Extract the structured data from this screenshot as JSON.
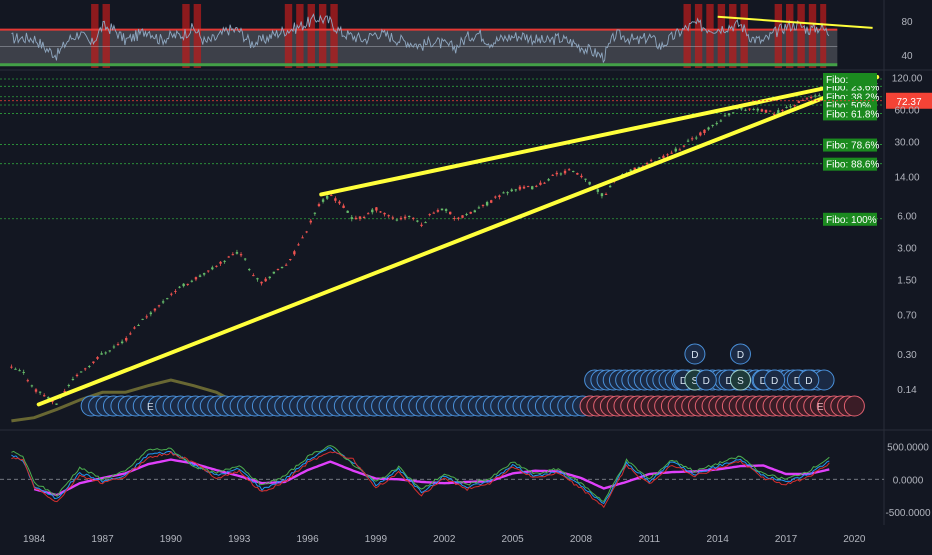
{
  "chart_data": [
    {
      "type": "line",
      "pane": "rsi",
      "y_ticks": [
        "80",
        "40"
      ],
      "ylim": [
        25,
        100
      ],
      "upper_band": 70,
      "lower_band": 30,
      "band_color": "#b71c1c",
      "line_color": "#8fa7c0",
      "trendline": {
        "x": [
          2014.0,
          2020.8
        ],
        "y": [
          85,
          72
        ],
        "color": "#ffff3b"
      },
      "series": [
        {
          "x": [
            1984.0,
            1984.5,
            1985.0,
            1985.5,
            1986.0,
            1986.5,
            1987.0,
            1987.5,
            1988.0,
            1988.5,
            1989.0,
            1989.5,
            1990.0,
            1990.5,
            1991.0,
            1991.5,
            1992.0,
            1992.5,
            1993.0,
            1993.5,
            1994.0,
            1994.5,
            1995.0,
            1995.5,
            1996.0,
            1996.5,
            1997.0,
            1997.5,
            1998.0,
            1998.5,
            1999.0,
            1999.5,
            2000.0,
            2000.5,
            2001.0,
            2001.5,
            2002.0,
            2002.5,
            2003.0,
            2003.5,
            2004.0,
            2004.5,
            2005.0,
            2005.5,
            2006.0,
            2006.5,
            2007.0,
            2007.5,
            2008.0,
            2008.5,
            2009.0,
            2009.5,
            2010.0,
            2010.5,
            2011.0,
            2011.5,
            2012.0,
            2012.5,
            2013.0,
            2013.5,
            2014.0,
            2014.5,
            2015.0,
            2015.5,
            2016.0,
            2016.5,
            2017.0,
            2017.5,
            2018.0,
            2018.5,
            2018.9
          ],
          "y": [
            60,
            48,
            40,
            58,
            66,
            52,
            74,
            70,
            57,
            63,
            70,
            58,
            62,
            64,
            72,
            55,
            60,
            70,
            69,
            54,
            57,
            64,
            69,
            72,
            78,
            84,
            79,
            66,
            62,
            58,
            66,
            63,
            58,
            55,
            51,
            57,
            52,
            49,
            61,
            66,
            55,
            59,
            62,
            63,
            58,
            56,
            60,
            56,
            50,
            44,
            38,
            64,
            61,
            56,
            62,
            50,
            61,
            70,
            77,
            72,
            71,
            74,
            76,
            60,
            56,
            66,
            74,
            76,
            70,
            73,
            66
          ]
        }
      ]
    },
    {
      "type": "line",
      "pane": "price",
      "scale": "log",
      "ylim": [
        0.06,
        135
      ],
      "x_ticks": [
        "1984",
        "1987",
        "1990",
        "1993",
        "1996",
        "1999",
        "2002",
        "2005",
        "2008",
        "2011",
        "2014",
        "2017",
        "2020"
      ],
      "y_ticks": [
        "120.00",
        "60.00",
        "30.00",
        "14.00",
        "6.00",
        "3.00",
        "1.50",
        "0.70",
        "0.30",
        "0.14"
      ],
      "last_price_label": "72.37",
      "last_price": 72.37,
      "candle_up_color": "#66bb6a",
      "candle_down_color": "#ef5350",
      "fib_levels": [
        {
          "label": "Fibo: 23.6%",
          "value": 99
        },
        {
          "label": "Fibo: 38.2%",
          "value": 79
        },
        {
          "label": "Fibo:  50%",
          "value": 66
        },
        {
          "label": "Fibo: 61.8%",
          "value": 55
        },
        {
          "label": "Fibo: 78.6%",
          "value": 28
        },
        {
          "label": "Fibo: 88.6%",
          "value": 18.5
        },
        {
          "label": "Fibo:  100%",
          "value": 5.6
        },
        {
          "label": "Fibo:",
          "value": 116
        }
      ],
      "trendlines": [
        {
          "x": [
            1984.2,
            2021.0
          ],
          "y": [
            0.1,
            121
          ],
          "color": "#ffff3b"
        },
        {
          "x": [
            1996.6,
            2021.0
          ],
          "y": [
            9.5,
            121
          ],
          "color": "#ffff3b"
        }
      ],
      "series": [
        {
          "name": "",
          "x": [
            1983.0,
            1983.5,
            1984.0,
            1984.5,
            1985.0,
            1985.5,
            1986.0,
            1986.5,
            1987.0,
            1987.5,
            1988.0,
            1988.5,
            1989.0,
            1989.5,
            1990.0,
            1990.5,
            1991.0,
            1991.5,
            1992.0,
            1992.5,
            1993.0,
            1993.5,
            1994.0,
            1994.5,
            1995.0,
            1995.5,
            1996.0,
            1996.5,
            1997.0,
            1997.5,
            1998.0,
            1998.5,
            1999.0,
            1999.5,
            2000.0,
            2000.5,
            2001.0,
            2001.5,
            2002.0,
            2002.5,
            2003.0,
            2003.5,
            2004.0,
            2004.5,
            2005.0,
            2005.5,
            2006.0,
            2006.5,
            2007.0,
            2007.5,
            2008.0,
            2008.5,
            2009.0,
            2009.5,
            2010.0,
            2010.5,
            2011.0,
            2011.5,
            2012.0,
            2012.5,
            2013.0,
            2013.5,
            2014.0,
            2014.5,
            2015.0,
            2015.5,
            2016.0,
            2016.5,
            2017.0,
            2017.5,
            2018.0,
            2018.5,
            2018.9
          ],
          "y": [
            0.22,
            0.2,
            0.14,
            0.12,
            0.1,
            0.15,
            0.2,
            0.24,
            0.3,
            0.35,
            0.4,
            0.55,
            0.7,
            0.85,
            1.1,
            1.3,
            1.5,
            1.7,
            2.0,
            2.4,
            2.8,
            1.8,
            1.4,
            1.7,
            2.0,
            2.8,
            4.5,
            7.5,
            9.5,
            7.5,
            5.5,
            5.8,
            7.0,
            6.0,
            5.5,
            6.0,
            4.8,
            6.5,
            7.0,
            5.6,
            6.0,
            7.0,
            8.0,
            9.5,
            10.5,
            11.0,
            11.0,
            13.0,
            15.0,
            16.0,
            14.0,
            11.5,
            9.0,
            13.0,
            15.0,
            17.0,
            19.0,
            21.0,
            24.0,
            27.0,
            33.0,
            38.0,
            45.0,
            55.0,
            62.0,
            60.0,
            58.0,
            55.0,
            62.0,
            68.0,
            78.0,
            80.0,
            72.37
          ]
        }
      ]
    },
    {
      "type": "line",
      "pane": "oscillator",
      "y_ticks": [
        "500.0000",
        "0.0000",
        "-500.0000"
      ],
      "ylim": [
        -620,
        720
      ],
      "zero_line": 0,
      "series": [
        {
          "name": "",
          "color": "#e040fb",
          "x": [
            1984.0,
            1985.0,
            1986.0,
            1987.0,
            1988.0,
            1989.0,
            1990.0,
            1991.0,
            1992.0,
            1993.0,
            1994.0,
            1995.0,
            1996.0,
            1997.0,
            1998.0,
            1999.0,
            2000.0,
            2001.0,
            2002.0,
            2003.0,
            2004.0,
            2005.0,
            2006.0,
            2007.0,
            2008.0,
            2009.0,
            2010.0,
            2011.0,
            2012.0,
            2013.0,
            2014.0,
            2015.0,
            2016.0,
            2017.0,
            2018.0,
            2018.9
          ],
          "y": [
            -150,
            -240,
            -60,
            20,
            90,
            230,
            300,
            240,
            140,
            50,
            -60,
            -40,
            140,
            270,
            130,
            10,
            0,
            -40,
            -60,
            -40,
            -30,
            90,
            130,
            120,
            20,
            -140,
            -40,
            80,
            110,
            120,
            150,
            200,
            210,
            80,
            80,
            150
          ]
        },
        {
          "name": "",
          "color": "#2196f3",
          "x": [
            1983.0,
            1983.5,
            1984.0,
            1985.0,
            1986.0,
            1987.0,
            1988.0,
            1989.0,
            1990.0,
            1991.0,
            1992.0,
            1993.0,
            1994.0,
            1995.0,
            1996.0,
            1997.0,
            1998.0,
            1999.0,
            2000.0,
            2001.0,
            2002.0,
            2003.0,
            2004.0,
            2005.0,
            2006.0,
            2007.0,
            2008.0,
            2009.0,
            2010.0,
            2011.0,
            2012.0,
            2013.0,
            2014.0,
            2015.0,
            2016.0,
            2017.0,
            2018.0,
            2018.9
          ],
          "y": [
            380,
            280,
            -100,
            -300,
            100,
            -30,
            50,
            380,
            420,
            220,
            60,
            160,
            -150,
            0,
            290,
            480,
            260,
            -80,
            150,
            -200,
            50,
            -120,
            -30,
            220,
            40,
            120,
            -100,
            -380,
            250,
            -40,
            270,
            80,
            200,
            310,
            50,
            -40,
            80,
            280
          ]
        },
        {
          "name": "",
          "color": "#4caf50",
          "x": [
            1983.0,
            1983.5,
            1984.0,
            1985.0,
            1986.0,
            1987.0,
            1988.0,
            1989.0,
            1990.0,
            1991.0,
            1992.0,
            1993.0,
            1994.0,
            1995.0,
            1996.0,
            1997.0,
            1998.0,
            1999.0,
            2000.0,
            2001.0,
            2002.0,
            2003.0,
            2004.0,
            2005.0,
            2006.0,
            2007.0,
            2008.0,
            2009.0,
            2010.0,
            2011.0,
            2012.0,
            2013.0,
            2014.0,
            2015.0,
            2016.0,
            2017.0,
            2018.0,
            2018.9
          ],
          "y": [
            420,
            350,
            -50,
            -250,
            180,
            0,
            120,
            450,
            460,
            200,
            90,
            220,
            -100,
            50,
            340,
            520,
            230,
            -40,
            180,
            -160,
            80,
            -80,
            10,
            260,
            80,
            160,
            -60,
            -340,
            290,
            0,
            300,
            120,
            240,
            350,
            80,
            0,
            130,
            330
          ]
        },
        {
          "name": "",
          "color": "#d32f2f",
          "x": [
            1983.0,
            1983.5,
            1984.0,
            1985.0,
            1986.0,
            1987.0,
            1988.0,
            1989.0,
            1990.0,
            1991.0,
            1992.0,
            1993.0,
            1994.0,
            1995.0,
            1996.0,
            1997.0,
            1998.0,
            1999.0,
            2000.0,
            2001.0,
            2002.0,
            2003.0,
            2004.0,
            2005.0,
            2006.0,
            2007.0,
            2008.0,
            2009.0,
            2010.0,
            2011.0,
            2012.0,
            2013.0,
            2014.0,
            2015.0,
            2016.0,
            2017.0,
            2018.0,
            2018.9
          ],
          "y": [
            320,
            300,
            -120,
            -350,
            60,
            -60,
            40,
            330,
            400,
            260,
            20,
            120,
            -200,
            -40,
            250,
            430,
            300,
            -130,
            100,
            -240,
            20,
            -150,
            -60,
            190,
            20,
            90,
            -140,
            -420,
            200,
            -80,
            230,
            50,
            160,
            280,
            20,
            -80,
            40,
            240
          ]
        }
      ]
    }
  ],
  "markers": {
    "blue_row": {
      "label": "E",
      "count": 68,
      "from": 1986.5,
      "to": 2008.4
    },
    "red_row": {
      "label": "E",
      "count": 40,
      "from": 2008.4,
      "to": 2020.0
    },
    "upper_rows": [
      {
        "level": "top",
        "labels": [
          "D",
          "D"
        ],
        "x": [
          2013.0,
          2015.0
        ]
      },
      {
        "level": "mid",
        "labels": [
          "D",
          "S",
          "D",
          "D",
          "D",
          "S",
          "D",
          "D",
          "D",
          "D"
        ],
        "x": [
          2012.5,
          2013.0,
          2013.5,
          2014.5,
          2015.0,
          2015.0,
          2016.0,
          2016.5,
          2017.5,
          2018.0
        ]
      }
    ]
  }
}
